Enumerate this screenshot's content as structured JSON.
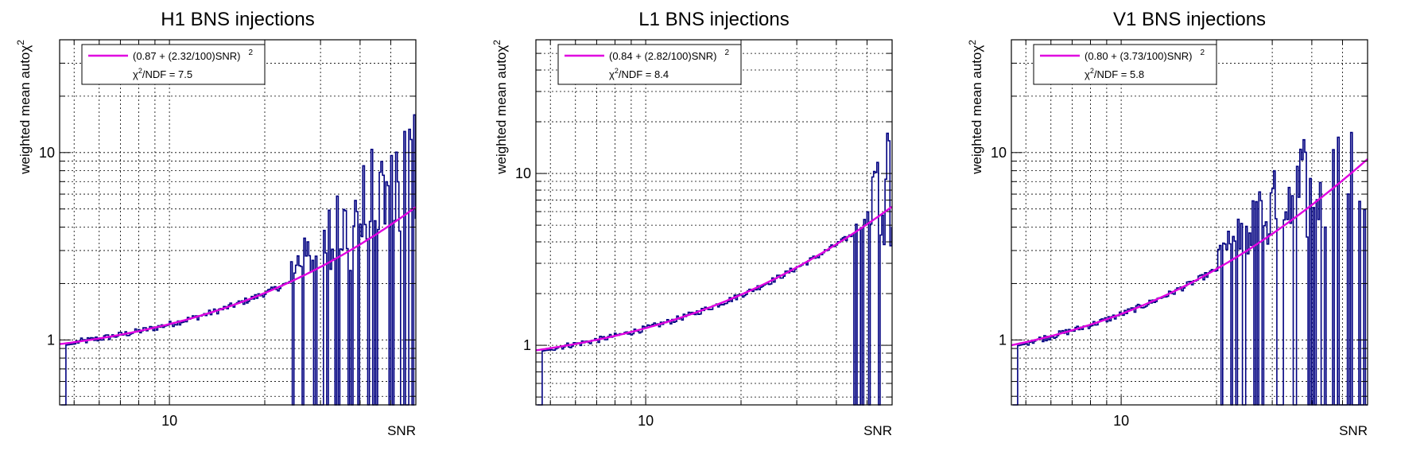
{
  "colors": {
    "data": "#000080",
    "fit": "#e000e0",
    "grid": "#000000",
    "frame": "#000000"
  },
  "chart_data": [
    {
      "type": "line",
      "title": "H1 BNS injections",
      "xlabel": "SNR",
      "ylabel_main": "weighted mean auto",
      "ylabel_chi": "χ",
      "ylabel_sup": "2",
      "x_scale": "log",
      "y_scale": "log",
      "xlim": [
        4.5,
        60
      ],
      "ylim": [
        0.45,
        40
      ],
      "x_ticklabels": [
        "10"
      ],
      "y_ticklabels": [
        "1",
        "10"
      ],
      "grid": true,
      "legend_position": "top-left",
      "fit": {
        "a": 0.87,
        "b": 2.32,
        "label": "(0.87 + (2.32/100)SNR)",
        "label_sup": "2"
      },
      "stat_main": "/NDF = 7.5",
      "stat_chi": "χ",
      "stat_sup": "2",
      "noise_start": 24,
      "bad_fraction": 0.35,
      "series": [
        {
          "name": "(0.87 + (2.32/100)SNR)",
          "type": "fit"
        }
      ]
    },
    {
      "type": "line",
      "title": "L1 BNS injections",
      "xlabel": "SNR",
      "ylabel_main": "weighted mean auto",
      "ylabel_chi": "χ",
      "ylabel_sup": "2",
      "x_scale": "log",
      "y_scale": "log",
      "xlim": [
        4.5,
        60
      ],
      "ylim": [
        0.45,
        60
      ],
      "x_ticklabels": [
        "10"
      ],
      "y_ticklabels": [
        "1",
        "10"
      ],
      "grid": true,
      "legend_position": "top-left",
      "fit": {
        "a": 0.84,
        "b": 2.82,
        "label": "(0.84 + (2.82/100)SNR)",
        "label_sup": "2"
      },
      "stat_main": "/NDF = 8.4",
      "stat_chi": "χ",
      "stat_sup": "2",
      "noise_start": 45,
      "bad_fraction": 0.25,
      "series": [
        {
          "name": "(0.84 + (2.82/100)SNR)",
          "type": "fit"
        }
      ]
    },
    {
      "type": "line",
      "title": "V1 BNS injections",
      "xlabel": "SNR",
      "ylabel_main": "weighted mean auto",
      "ylabel_chi": "χ",
      "ylabel_sup": "2",
      "x_scale": "log",
      "y_scale": "log",
      "xlim": [
        4.5,
        60
      ],
      "ylim": [
        0.45,
        40
      ],
      "x_ticklabels": [
        "10"
      ],
      "y_ticklabels": [
        "1",
        "10"
      ],
      "grid": true,
      "legend_position": "top-left",
      "fit": {
        "a": 0.8,
        "b": 3.73,
        "label": "(0.80 + (3.73/100)SNR)",
        "label_sup": "2"
      },
      "stat_main": "/NDF = 5.8",
      "stat_chi": "χ",
      "stat_sup": "2",
      "noise_start": 20,
      "bad_fraction": 0.45,
      "series": [
        {
          "name": "(0.80 + (3.73/100)SNR)",
          "type": "fit"
        }
      ]
    }
  ]
}
